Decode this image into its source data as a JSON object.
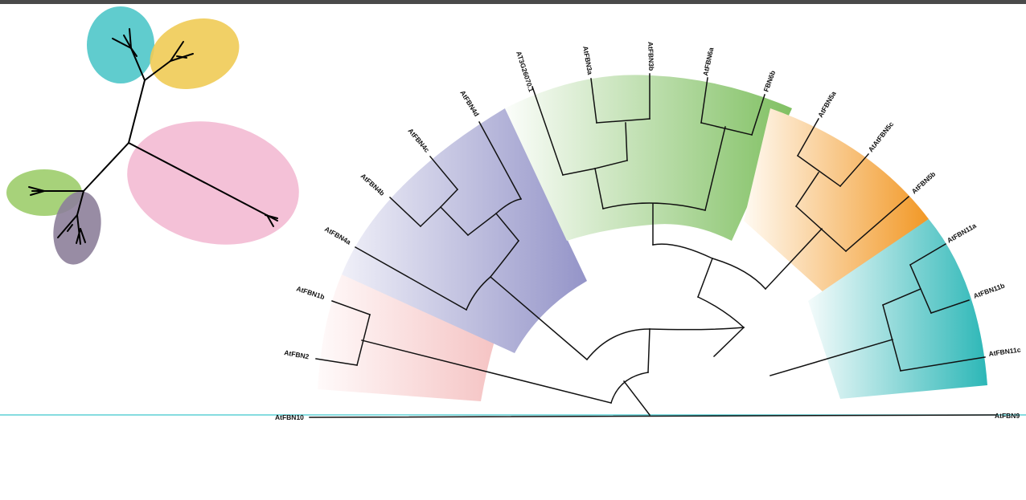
{
  "tree": {
    "leaves": [
      "AtFBN10",
      "AtFBN2",
      "AtFBN1b",
      "AtFBN4a",
      "AtFBN4b",
      "AtFBN4c",
      "AtFBN4d",
      "AT3G26070.1",
      "AtFBN3a",
      "AtFBN3b",
      "AtFBN6a",
      "FBN6b",
      "AtFBN5a",
      "AtAtFBN5c",
      "AtFBN5b",
      "AtFBN11a",
      "AtFBN11b",
      "AtFBN11c",
      "AtFBN9"
    ]
  },
  "colors": {
    "red_clade": "#f5c4c4",
    "purple_clade": "#9a9acc",
    "green_clade": "#86c26a",
    "orange_clade": "#f29a2e",
    "teal_clade": "#2fb9b9",
    "baseline": "#3ec6cc",
    "unrooted_teal": "#4fc6c9",
    "unrooted_yellow": "#efcb55",
    "unrooted_pink": "#f2b6d0",
    "unrooted_green": "#9dcd6c",
    "unrooted_purple": "#8d7f9a"
  }
}
